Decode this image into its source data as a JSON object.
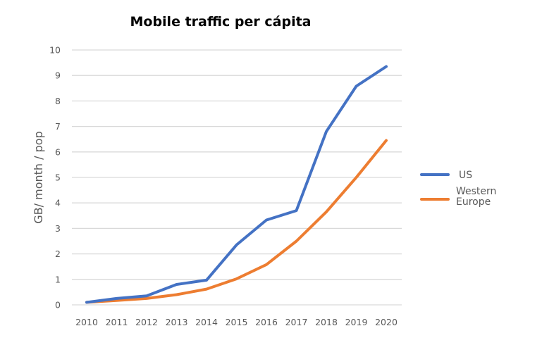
{
  "chart_data": {
    "type": "line",
    "title": "Mobile traffic per cápita",
    "xlabel": "",
    "ylabel": "GB/ month / pop",
    "x": [
      "2010",
      "2011",
      "2012",
      "2013",
      "2014",
      "2015",
      "2016",
      "2017",
      "2018",
      "2019",
      "2020"
    ],
    "yticks": [
      "0",
      "1",
      "2",
      "3",
      "4",
      "5",
      "6",
      "7",
      "8",
      "9",
      "10"
    ],
    "ylim": [
      0,
      10
    ],
    "grid": true,
    "legend_position": "right",
    "series": [
      {
        "name": "US",
        "legend_lines": [
          "US"
        ],
        "color": "#4472C4",
        "values": [
          0.1,
          0.25,
          0.35,
          0.8,
          0.97,
          2.35,
          3.33,
          3.7,
          6.8,
          8.58,
          9.35
        ]
      },
      {
        "name": "Western Europe",
        "legend_lines": [
          "Western",
          "Europe"
        ],
        "color": "#ED7D31",
        "values": [
          0.1,
          0.17,
          0.25,
          0.4,
          0.62,
          1.02,
          1.58,
          2.5,
          3.65,
          5.0,
          6.45
        ]
      }
    ]
  }
}
